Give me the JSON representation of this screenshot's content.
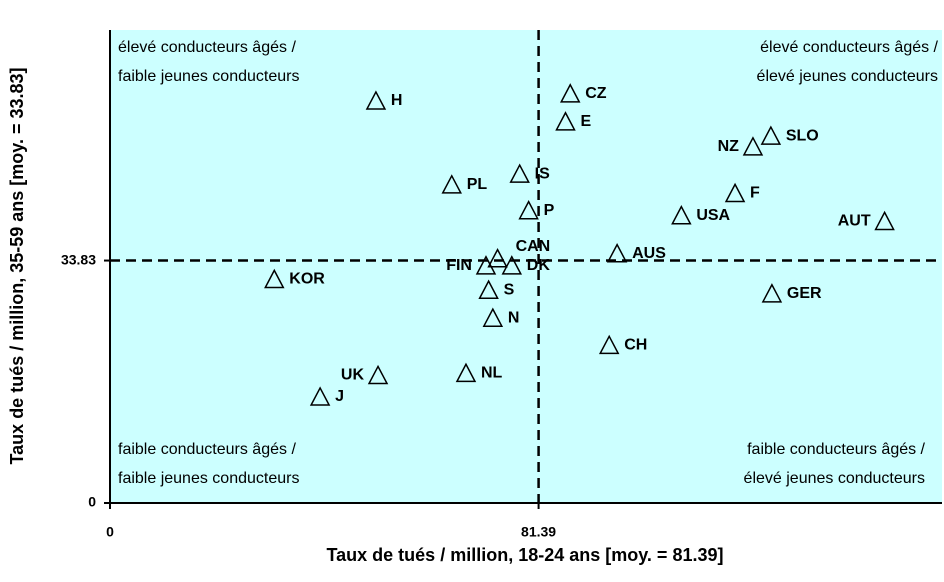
{
  "chart_data": {
    "type": "scatter",
    "x_label": "Taux de tués / million, 18-24 ans [moy. = 81.39]",
    "y_label": "Taux de tués / million, 35-59 ans [moy. = 33.83]",
    "labels": [
      "H",
      "CZ",
      "E",
      "SLO",
      "NZ",
      "IS",
      "PL",
      "F",
      "P",
      "USA",
      "AUT",
      "CAN",
      "AUS",
      "FIN",
      "DK",
      "KOR",
      "S",
      "GER",
      "N",
      "CH",
      "UK",
      "NL",
      "J"
    ],
    "x": [
      50.5,
      87.4,
      86.5,
      125.5,
      122.1,
      77.8,
      64.9,
      118.7,
      79.5,
      108.5,
      147.1,
      73.6,
      96.3,
      71.4,
      76.3,
      31.2,
      71.9,
      125.7,
      72.7,
      94.8,
      50.9,
      67.6,
      39.9
    ],
    "y": [
      56.1,
      57.1,
      53.2,
      51.2,
      49.7,
      45.9,
      44.4,
      43.2,
      40.8,
      40.1,
      39.3,
      34.1,
      34.8,
      33.1,
      33.1,
      31.2,
      29.7,
      29.2,
      25.8,
      22.0,
      17.8,
      18.1,
      14.8
    ],
    "xlim": [
      0,
      158
    ],
    "ylim": [
      0,
      66
    ],
    "xticks": [
      0,
      81.39
    ],
    "yticks": [
      0,
      33.83
    ],
    "reference_lines": {
      "x": 81.39,
      "y": 33.83
    },
    "background": "#ccffff",
    "marker_color": "#000000",
    "quadrant_labels": {
      "top_left": [
        "élevé conducteurs âgés /",
        "faible jeunes conducteurs"
      ],
      "top_right": [
        "élevé conducteurs âgés /",
        "élevé jeunes conducteurs"
      ],
      "bottom_left": [
        "faible conducteurs âgés /",
        "faible jeunes conducteurs"
      ],
      "bottom_right": [
        "faible conducteurs âgés /",
        "élevé jeunes conducteurs"
      ]
    }
  }
}
